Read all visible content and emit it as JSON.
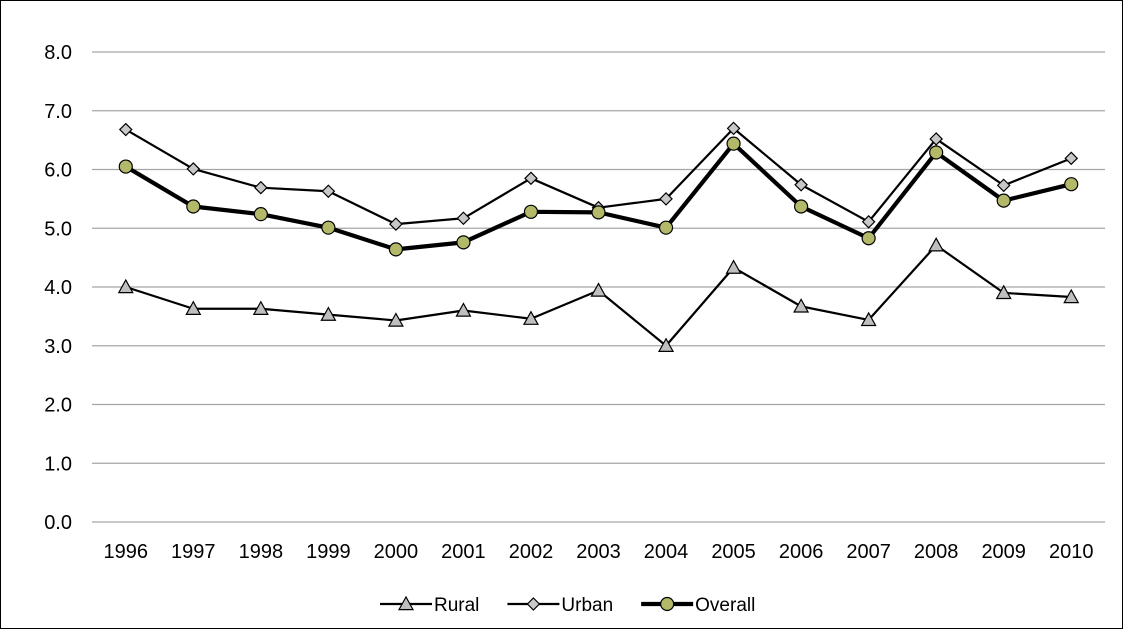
{
  "chart_data": {
    "type": "line",
    "title": "",
    "xlabel": "",
    "ylabel": "",
    "x": [
      "1996",
      "1997",
      "1998",
      "1999",
      "2000",
      "2001",
      "2002",
      "2003",
      "2004",
      "2005",
      "2006",
      "2007",
      "2008",
      "2009",
      "2010"
    ],
    "ylim": [
      0,
      8
    ],
    "yticks": [
      "0.0",
      "1.0",
      "2.0",
      "3.0",
      "4.0",
      "5.0",
      "6.0",
      "7.0",
      "8.0"
    ],
    "grid": true,
    "legend_position": "bottom",
    "series": [
      {
        "name": "Rural",
        "marker": "triangle",
        "color": "#000000",
        "marker_fill": "#bfbfbf",
        "values": [
          4.0,
          3.63,
          3.63,
          3.53,
          3.43,
          3.6,
          3.46,
          3.94,
          3.0,
          4.33,
          3.67,
          3.44,
          4.71,
          3.9,
          3.83
        ]
      },
      {
        "name": "Urban",
        "marker": "diamond",
        "color": "#000000",
        "marker_fill": "#c8c8c8",
        "values": [
          6.68,
          6.01,
          5.69,
          5.63,
          5.07,
          5.17,
          5.85,
          5.35,
          5.5,
          6.7,
          5.74,
          5.11,
          6.52,
          5.73,
          6.19
        ]
      },
      {
        "name": "Overall",
        "marker": "circle",
        "color": "#000000",
        "marker_fill": "#b4b96a",
        "values": [
          6.05,
          5.37,
          5.24,
          5.01,
          4.64,
          4.76,
          5.28,
          5.27,
          5.01,
          6.44,
          5.37,
          4.83,
          6.29,
          5.47,
          5.75
        ]
      }
    ]
  }
}
